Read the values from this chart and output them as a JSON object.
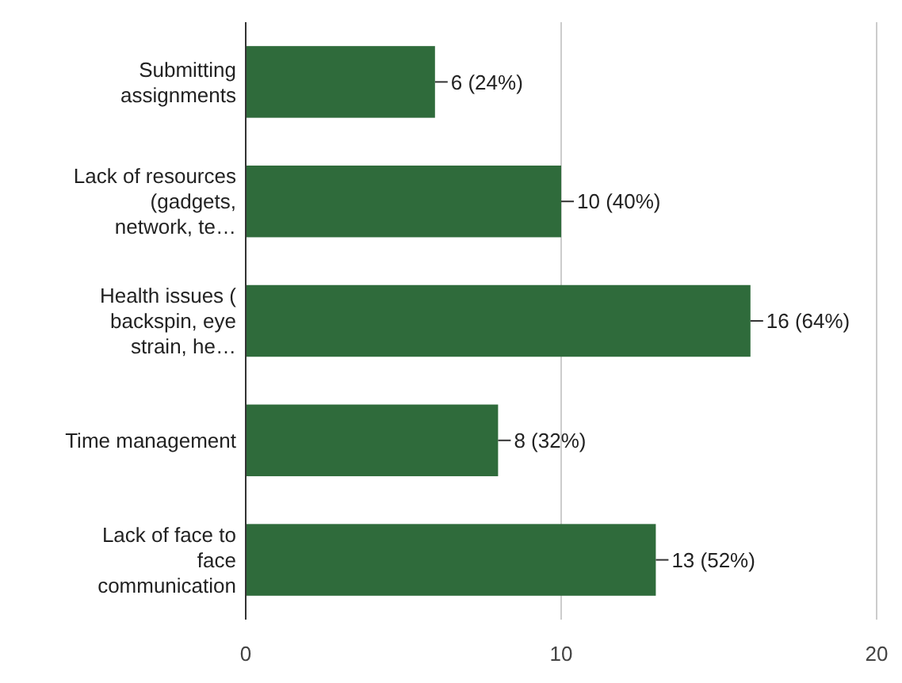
{
  "chart_data": {
    "type": "bar",
    "orientation": "horizontal",
    "categories": [
      "Submitting assignments",
      "Lack of resources (gadgets, network, te…",
      "Health issues ( backspin, eye strain, he…",
      "Time management",
      "Lack of face to face communication"
    ],
    "values": [
      6,
      10,
      16,
      8,
      13
    ],
    "value_labels": [
      "6 (24%)",
      "10 (40%)",
      "16 (64%)",
      "8 (32%)",
      "13 (52%)"
    ],
    "color": "#2f6b3b",
    "xlim": [
      0,
      20
    ],
    "xticks": [
      0,
      10,
      20
    ],
    "grid": "x"
  }
}
